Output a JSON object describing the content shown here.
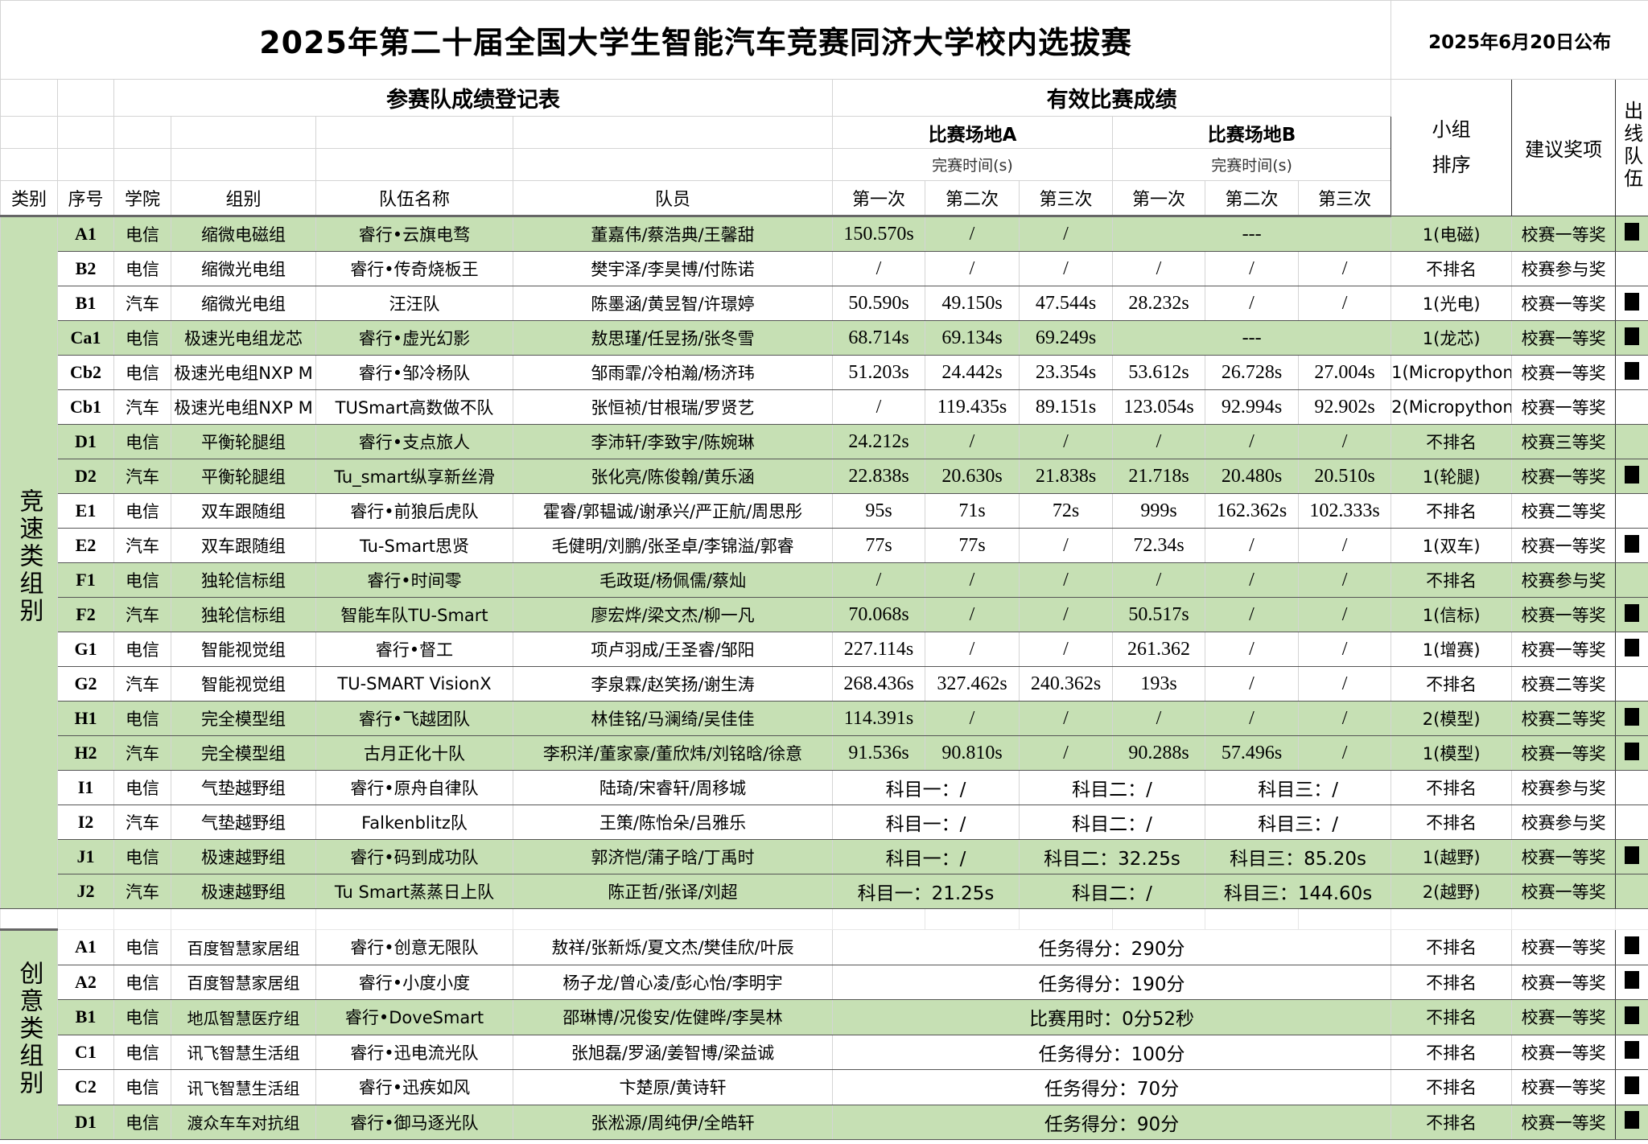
{
  "header": {
    "title": "2025年第二十届全国大学生智能汽车竞赛同济大学校内选拔赛",
    "published": "2025年6月20日公布",
    "register_title": "参赛队成绩登记表",
    "results_title": "有效比赛成绩",
    "venue_a": "比赛场地A",
    "venue_b": "比赛场地B",
    "finish_time": "完赛时间(s)",
    "group_rank": "小组排序",
    "award": "建议奖项",
    "qualified": "出线队伍",
    "columns": [
      "类别",
      "序号",
      "学院",
      "组别",
      "队伍名称",
      "队员",
      "第一次",
      "第二次",
      "第三次",
      "第一次",
      "第二次",
      "第三次"
    ]
  },
  "colors": {
    "highlight": "#c6e0b4",
    "qualified_mark": "#000000"
  },
  "speed": {
    "category": "竞速类组别",
    "rows": [
      {
        "seq": "A1",
        "college": "电信",
        "group": "缩微电磁组",
        "team": "睿行•云旗电骛",
        "members": "董嘉伟/蔡浩典/王馨甜",
        "results": [
          {
            "t": "150.570s",
            "s": 1
          },
          {
            "t": "/",
            "s": 1
          },
          {
            "t": "/",
            "s": 1
          },
          {
            "t": "---",
            "s": 3
          }
        ],
        "rank": "1(电磁)",
        "award": "校赛一等奖",
        "qualified": true,
        "highlight": true
      },
      {
        "seq": "B2",
        "college": "电信",
        "group": "缩微光电组",
        "team": "睿行•传奇烧板王",
        "members": "樊宇泽/李昊博/付陈诺",
        "results": [
          {
            "t": "/",
            "s": 1
          },
          {
            "t": "/",
            "s": 1
          },
          {
            "t": "/",
            "s": 1
          },
          {
            "t": "/",
            "s": 1
          },
          {
            "t": "/",
            "s": 1
          },
          {
            "t": "/",
            "s": 1
          }
        ],
        "rank": "不排名",
        "award": "校赛参与奖",
        "qualified": false,
        "highlight": false
      },
      {
        "seq": "B1",
        "college": "汽车",
        "group": "缩微光电组",
        "team": "汪汪队",
        "members": "陈墨涵/黄昱智/许璟婷",
        "results": [
          {
            "t": "50.590s",
            "s": 1
          },
          {
            "t": "49.150s",
            "s": 1
          },
          {
            "t": "47.544s",
            "s": 1
          },
          {
            "t": "28.232s",
            "s": 1
          },
          {
            "t": "/",
            "s": 1
          },
          {
            "t": "/",
            "s": 1
          }
        ],
        "rank": "1(光电)",
        "award": "校赛一等奖",
        "qualified": true,
        "highlight": false
      },
      {
        "seq": "Ca1",
        "college": "电信",
        "group": "极速光电组龙芯",
        "team": "睿行•虚光幻影",
        "members": "敖思瑾/任昱扬/张冬雪",
        "results": [
          {
            "t": "68.714s",
            "s": 1
          },
          {
            "t": "69.134s",
            "s": 1
          },
          {
            "t": "69.249s",
            "s": 1
          },
          {
            "t": "---",
            "s": 3
          }
        ],
        "rank": "1(龙芯)",
        "award": "校赛一等奖",
        "qualified": true,
        "highlight": true
      },
      {
        "seq": "Cb2",
        "college": "电信",
        "group": "极速光电组NXP M",
        "team": "睿行•邹冷杨队",
        "members": "邹雨霏/冷柏瀚/杨济玮",
        "results": [
          {
            "t": "51.203s",
            "s": 1
          },
          {
            "t": "24.442s",
            "s": 1
          },
          {
            "t": "23.354s",
            "s": 1
          },
          {
            "t": "53.612s",
            "s": 1
          },
          {
            "t": "26.728s",
            "s": 1
          },
          {
            "t": "27.004s",
            "s": 1
          }
        ],
        "rank": "1(Micropython)",
        "award": "校赛一等奖",
        "qualified": true,
        "highlight": false
      },
      {
        "seq": "Cb1",
        "college": "汽车",
        "group": "极速光电组NXP M",
        "team": "TUSmart高数做不队",
        "members": "张恒祯/甘根瑞/罗贤艺",
        "results": [
          {
            "t": "/",
            "s": 1
          },
          {
            "t": "119.435s",
            "s": 1
          },
          {
            "t": "89.151s",
            "s": 1
          },
          {
            "t": "123.054s",
            "s": 1
          },
          {
            "t": "92.994s",
            "s": 1
          },
          {
            "t": "92.902s",
            "s": 1
          }
        ],
        "rank": "2(Micropython)",
        "award": "校赛一等奖",
        "qualified": false,
        "highlight": false
      },
      {
        "seq": "D1",
        "college": "电信",
        "group": "平衡轮腿组",
        "team": "睿行•支点旅人",
        "members": "李沛轩/李致宇/陈婉琳",
        "results": [
          {
            "t": "24.212s",
            "s": 1
          },
          {
            "t": "/",
            "s": 1
          },
          {
            "t": "/",
            "s": 1
          },
          {
            "t": "/",
            "s": 1
          },
          {
            "t": "/",
            "s": 1
          },
          {
            "t": "/",
            "s": 1
          }
        ],
        "rank": "不排名",
        "award": "校赛三等奖",
        "qualified": false,
        "highlight": true
      },
      {
        "seq": "D2",
        "college": "汽车",
        "group": "平衡轮腿组",
        "team": "Tu_smart纵享新丝滑",
        "members": "张化亮/陈俊翰/黄乐涵",
        "results": [
          {
            "t": "22.838s",
            "s": 1
          },
          {
            "t": "20.630s",
            "s": 1
          },
          {
            "t": "21.838s",
            "s": 1
          },
          {
            "t": "21.718s",
            "s": 1
          },
          {
            "t": "20.480s",
            "s": 1
          },
          {
            "t": "20.510s",
            "s": 1
          }
        ],
        "rank": "1(轮腿)",
        "award": "校赛一等奖",
        "qualified": true,
        "highlight": true
      },
      {
        "seq": "E1",
        "college": "电信",
        "group": "双车跟随组",
        "team": "睿行•前狼后虎队",
        "members": "霍睿/郭韫诚/谢承兴/严正航/周思彤",
        "results": [
          {
            "t": "95s",
            "s": 1
          },
          {
            "t": "71s",
            "s": 1
          },
          {
            "t": "72s",
            "s": 1
          },
          {
            "t": "999s",
            "s": 1
          },
          {
            "t": "162.362s",
            "s": 1
          },
          {
            "t": "102.333s",
            "s": 1
          }
        ],
        "rank": "不排名",
        "award": "校赛二等奖",
        "qualified": false,
        "highlight": false
      },
      {
        "seq": "E2",
        "college": "汽车",
        "group": "双车跟随组",
        "team": "Tu-Smart思贤",
        "members": "毛健明/刘鹏/张圣卓/李锦溢/郭睿",
        "results": [
          {
            "t": "77s",
            "s": 1
          },
          {
            "t": "77s",
            "s": 1
          },
          {
            "t": "/",
            "s": 1
          },
          {
            "t": "72.34s",
            "s": 1
          },
          {
            "t": "/",
            "s": 1
          },
          {
            "t": "/",
            "s": 1
          }
        ],
        "rank": "1(双车)",
        "award": "校赛一等奖",
        "qualified": true,
        "highlight": false
      },
      {
        "seq": "F1",
        "college": "电信",
        "group": "独轮信标组",
        "team": "睿行•时间零",
        "members": "毛政珽/杨佩儒/蔡灿",
        "results": [
          {
            "t": "/",
            "s": 1
          },
          {
            "t": "/",
            "s": 1
          },
          {
            "t": "/",
            "s": 1
          },
          {
            "t": "/",
            "s": 1
          },
          {
            "t": "/",
            "s": 1
          },
          {
            "t": "/",
            "s": 1
          }
        ],
        "rank": "不排名",
        "award": "校赛参与奖",
        "qualified": false,
        "highlight": true
      },
      {
        "seq": "F2",
        "college": "汽车",
        "group": "独轮信标组",
        "team": "智能车队TU-Smart",
        "members": "廖宏烨/梁文杰/柳一凡",
        "results": [
          {
            "t": "70.068s",
            "s": 1
          },
          {
            "t": "/",
            "s": 1
          },
          {
            "t": "/",
            "s": 1
          },
          {
            "t": "50.517s",
            "s": 1
          },
          {
            "t": "/",
            "s": 1
          },
          {
            "t": "/",
            "s": 1
          }
        ],
        "rank": "1(信标)",
        "award": "校赛一等奖",
        "qualified": true,
        "highlight": true
      },
      {
        "seq": "G1",
        "college": "电信",
        "group": "智能视觉组",
        "team": "睿行•督工",
        "members": "项卢羽成/王圣睿/邹阳",
        "results": [
          {
            "t": "227.114s",
            "s": 1
          },
          {
            "t": "/",
            "s": 1
          },
          {
            "t": "/",
            "s": 1
          },
          {
            "t": "261.362",
            "s": 1
          },
          {
            "t": "/",
            "s": 1
          },
          {
            "t": "/",
            "s": 1
          }
        ],
        "rank": "1(增赛)",
        "award": "校赛一等奖",
        "qualified": true,
        "highlight": false
      },
      {
        "seq": "G2",
        "college": "汽车",
        "group": "智能视觉组",
        "team": "TU-SMART VisionX",
        "members": "李泉霖/赵笑扬/谢生涛",
        "results": [
          {
            "t": "268.436s",
            "s": 1
          },
          {
            "t": "327.462s",
            "s": 1
          },
          {
            "t": "240.362s",
            "s": 1
          },
          {
            "t": "193s",
            "s": 1
          },
          {
            "t": "/",
            "s": 1
          },
          {
            "t": "/",
            "s": 1
          }
        ],
        "rank": "不排名",
        "award": "校赛二等奖",
        "qualified": false,
        "highlight": false
      },
      {
        "seq": "H1",
        "college": "电信",
        "group": "完全模型组",
        "team": "睿行•飞越团队",
        "members": "林佳铭/马澜绮/吴佳佳",
        "results": [
          {
            "t": "114.391s",
            "s": 1
          },
          {
            "t": "/",
            "s": 1
          },
          {
            "t": "/",
            "s": 1
          },
          {
            "t": "/",
            "s": 1
          },
          {
            "t": "/",
            "s": 1
          },
          {
            "t": "/",
            "s": 1
          }
        ],
        "rank": "2(模型)",
        "award": "校赛二等奖",
        "qualified": true,
        "highlight": true
      },
      {
        "seq": "H2",
        "college": "汽车",
        "group": "完全模型组",
        "team": "古月正化十队",
        "members": "李积洋/董家豪/董欣炜/刘铭晗/徐意",
        "results": [
          {
            "t": "91.536s",
            "s": 1
          },
          {
            "t": "90.810s",
            "s": 1
          },
          {
            "t": "/",
            "s": 1
          },
          {
            "t": "90.288s",
            "s": 1
          },
          {
            "t": "57.496s",
            "s": 1
          },
          {
            "t": "/",
            "s": 1
          }
        ],
        "rank": "1(模型)",
        "award": "校赛一等奖",
        "qualified": true,
        "highlight": true
      },
      {
        "seq": "I1",
        "college": "电信",
        "group": "气垫越野组",
        "team": "睿行•原舟自律队",
        "members": "陆琦/宋睿轩/周移城",
        "results": [
          {
            "t": "科目一：/",
            "s": 2
          },
          {
            "t": "科目二：/",
            "s": 2
          },
          {
            "t": "科目三：/",
            "s": 2
          }
        ],
        "rank": "不排名",
        "award": "校赛参与奖",
        "qualified": false,
        "highlight": false
      },
      {
        "seq": "I2",
        "college": "汽车",
        "group": "气垫越野组",
        "team": "Falkenblitz队",
        "members": "王策/陈怡朵/吕雅乐",
        "results": [
          {
            "t": "科目一：/",
            "s": 2
          },
          {
            "t": "科目二：/",
            "s": 2
          },
          {
            "t": "科目三：/",
            "s": 2
          }
        ],
        "rank": "不排名",
        "award": "校赛参与奖",
        "qualified": false,
        "highlight": false
      },
      {
        "seq": "J1",
        "college": "电信",
        "group": "极速越野组",
        "team": "睿行•码到成功队",
        "members": "郭济恺/蒲子晗/丁禹时",
        "results": [
          {
            "t": "科目一：/",
            "s": 2
          },
          {
            "t": "科目二：32.25s",
            "s": 2
          },
          {
            "t": "科目三：85.20s",
            "s": 2
          }
        ],
        "rank": "1(越野)",
        "award": "校赛一等奖",
        "qualified": true,
        "highlight": true
      },
      {
        "seq": "J2",
        "college": "汽车",
        "group": "极速越野组",
        "team": "Tu Smart蒸蒸日上队",
        "members": "陈正哲/张译/刘超",
        "results": [
          {
            "t": "科目一：21.25s",
            "s": 2
          },
          {
            "t": "科目二：/",
            "s": 2
          },
          {
            "t": "科目三：144.60s",
            "s": 2
          }
        ],
        "rank": "2(越野)",
        "award": "校赛一等奖",
        "qualified": false,
        "highlight": true
      }
    ]
  },
  "creative": {
    "category": "创意类组别",
    "rows": [
      {
        "seq": "A1",
        "college": "电信",
        "group": "百度智慧家居组",
        "team": "睿行•创意无限队",
        "members": "敖祥/张新烁/夏文杰/樊佳欣/叶辰",
        "results": [
          {
            "t": "任务得分：290分",
            "s": 6
          }
        ],
        "rank": "不排名",
        "award": "校赛一等奖",
        "qualified": true,
        "highlight": false
      },
      {
        "seq": "A2",
        "college": "电信",
        "group": "百度智慧家居组",
        "team": "睿行•小度小度",
        "members": "杨子龙/曾心凌/彭心怡/李明宇",
        "results": [
          {
            "t": "任务得分：190分",
            "s": 6
          }
        ],
        "rank": "不排名",
        "award": "校赛一等奖",
        "qualified": true,
        "highlight": false
      },
      {
        "seq": "B1",
        "college": "电信",
        "group": "地瓜智慧医疗组",
        "team": "睿行•DoveSmart",
        "members": "邵琳博/况俊安/佐健晔/李昊林",
        "results": [
          {
            "t": "比赛用时：0分52秒",
            "s": 6
          }
        ],
        "rank": "不排名",
        "award": "校赛一等奖",
        "qualified": true,
        "highlight": true
      },
      {
        "seq": "C1",
        "college": "电信",
        "group": "讯飞智慧生活组",
        "team": "睿行•迅电流光队",
        "members": "张旭磊/罗涵/姜智博/梁益诚",
        "results": [
          {
            "t": "任务得分：100分",
            "s": 6
          }
        ],
        "rank": "不排名",
        "award": "校赛一等奖",
        "qualified": true,
        "highlight": false
      },
      {
        "seq": "C2",
        "college": "电信",
        "group": "讯飞智慧生活组",
        "team": "睿行•迅疾如风",
        "members": "卞楚原/黄诗轩",
        "results": [
          {
            "t": "任务得分：70分",
            "s": 6
          }
        ],
        "rank": "不排名",
        "award": "校赛一等奖",
        "qualified": true,
        "highlight": false
      },
      {
        "seq": "D1",
        "college": "电信",
        "group": "渡众车车对抗组",
        "team": "睿行•御马逐光队",
        "members": "张淞源/周纯伊/全皓轩",
        "results": [
          {
            "t": "任务得分：90分",
            "s": 6
          }
        ],
        "rank": "不排名",
        "award": "校赛一等奖",
        "qualified": true,
        "highlight": true
      }
    ]
  }
}
